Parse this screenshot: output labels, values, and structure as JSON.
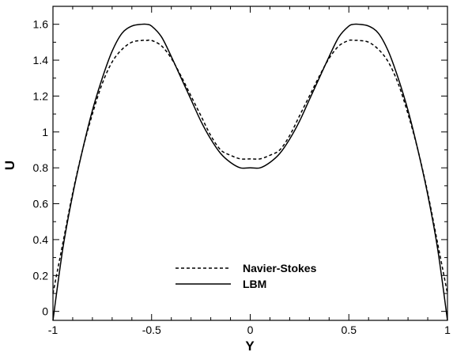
{
  "chart_data": {
    "type": "line",
    "title": "",
    "xlabel": "Y",
    "ylabel": "U",
    "xlim": [
      -1,
      1
    ],
    "ylim": [
      -0.05,
      1.7
    ],
    "grid": false,
    "legend_position": "lower-center",
    "x_ticks": [
      {
        "value": -1,
        "label": "-1"
      },
      {
        "value": -0.5,
        "label": "-0.5"
      },
      {
        "value": 0,
        "label": "0"
      },
      {
        "value": 0.5,
        "label": "0.5"
      },
      {
        "value": 1,
        "label": "1"
      }
    ],
    "y_ticks": [
      {
        "value": 0,
        "label": "0"
      },
      {
        "value": 0.2,
        "label": "0.2"
      },
      {
        "value": 0.4,
        "label": "0.4"
      },
      {
        "value": 0.6,
        "label": "0.6"
      },
      {
        "value": 0.8,
        "label": "0.8"
      },
      {
        "value": 1,
        "label": "1"
      },
      {
        "value": 1.2,
        "label": "1.2"
      },
      {
        "value": 1.4,
        "label": "1.4"
      },
      {
        "value": 1.6,
        "label": "1.6"
      }
    ],
    "series": [
      {
        "name": "Navier-Stokes",
        "style": "dashed",
        "color": "#000000",
        "x": [
          -1,
          -0.95,
          -0.9,
          -0.85,
          -0.8,
          -0.75,
          -0.7,
          -0.65,
          -0.6,
          -0.55,
          -0.525,
          -0.5,
          -0.45,
          -0.4,
          -0.35,
          -0.3,
          -0.25,
          -0.2,
          -0.15,
          -0.1,
          -0.05,
          0,
          0.05,
          0.1,
          0.15,
          0.2,
          0.25,
          0.3,
          0.35,
          0.4,
          0.45,
          0.5,
          0.525,
          0.55,
          0.6,
          0.65,
          0.7,
          0.75,
          0.8,
          0.85,
          0.9,
          0.95,
          1
        ],
        "y": [
          0.1,
          0.38,
          0.66,
          0.9,
          1.1,
          1.27,
          1.39,
          1.46,
          1.5,
          1.51,
          1.51,
          1.51,
          1.48,
          1.41,
          1.31,
          1.2,
          1.09,
          0.98,
          0.9,
          0.87,
          0.85,
          0.85,
          0.85,
          0.87,
          0.9,
          0.98,
          1.09,
          1.2,
          1.31,
          1.41,
          1.48,
          1.51,
          1.51,
          1.51,
          1.5,
          1.46,
          1.39,
          1.27,
          1.1,
          0.9,
          0.66,
          0.38,
          0.1
        ]
      },
      {
        "name": "LBM",
        "style": "solid",
        "color": "#000000",
        "x": [
          -1,
          -0.95,
          -0.9,
          -0.85,
          -0.8,
          -0.75,
          -0.7,
          -0.65,
          -0.6,
          -0.55,
          -0.525,
          -0.5,
          -0.45,
          -0.4,
          -0.35,
          -0.3,
          -0.25,
          -0.2,
          -0.15,
          -0.1,
          -0.05,
          0,
          0.05,
          0.1,
          0.15,
          0.2,
          0.25,
          0.3,
          0.35,
          0.4,
          0.45,
          0.5,
          0.525,
          0.55,
          0.6,
          0.65,
          0.7,
          0.75,
          0.8,
          0.85,
          0.9,
          0.95,
          1
        ],
        "y": [
          -0.05,
          0.35,
          0.65,
          0.9,
          1.12,
          1.3,
          1.45,
          1.55,
          1.59,
          1.6,
          1.6,
          1.59,
          1.53,
          1.42,
          1.3,
          1.18,
          1.06,
          0.96,
          0.88,
          0.83,
          0.8,
          0.8,
          0.8,
          0.83,
          0.88,
          0.96,
          1.06,
          1.18,
          1.3,
          1.42,
          1.53,
          1.59,
          1.6,
          1.6,
          1.59,
          1.55,
          1.45,
          1.3,
          1.12,
          0.9,
          0.65,
          0.35,
          -0.05
        ]
      }
    ]
  }
}
